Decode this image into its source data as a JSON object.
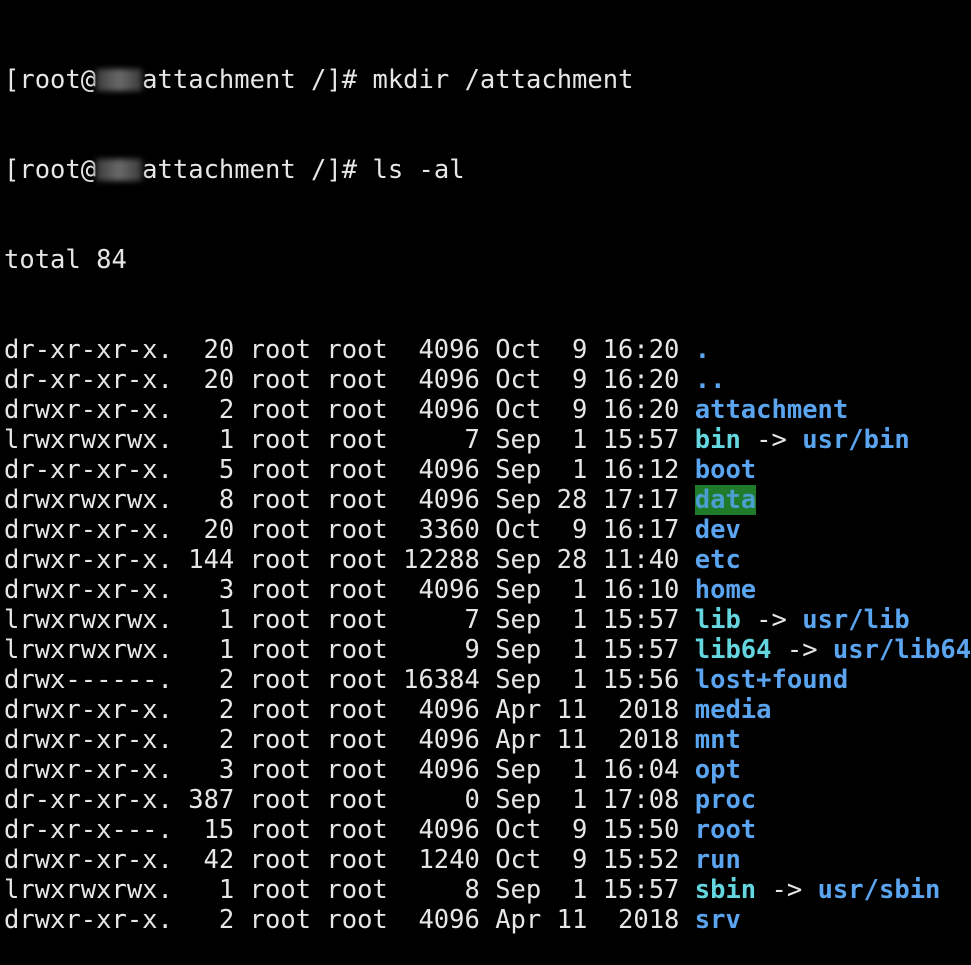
{
  "prompt_lines": [
    {
      "user": "[root@",
      "host_rest": "attachment /]# ",
      "command": "mkdir /attachment"
    },
    {
      "user": "[root@",
      "host_rest": "attachment /]# ",
      "command": "ls -al"
    }
  ],
  "total": "total 84",
  "colors": {
    "background": "#000000",
    "text": "#e6e6e6",
    "directory": "#5aa4f0",
    "symlink": "#63d6e0",
    "sticky_bg": "#1f7a2a"
  },
  "entries": [
    {
      "perms": "dr-xr-xr-x.",
      "links": "20",
      "owner": "root",
      "group": "root",
      "size": "4096",
      "month": "Oct",
      "day": "9",
      "time": "16:20",
      "name": ".",
      "type": "dir"
    },
    {
      "perms": "dr-xr-xr-x.",
      "links": "20",
      "owner": "root",
      "group": "root",
      "size": "4096",
      "month": "Oct",
      "day": "9",
      "time": "16:20",
      "name": "..",
      "type": "dir"
    },
    {
      "perms": "drwxr-xr-x.",
      "links": "2",
      "owner": "root",
      "group": "root",
      "size": "4096",
      "month": "Oct",
      "day": "9",
      "time": "16:20",
      "name": "attachment",
      "type": "dir"
    },
    {
      "perms": "lrwxrwxrwx.",
      "links": "1",
      "owner": "root",
      "group": "root",
      "size": "7",
      "month": "Sep",
      "day": "1",
      "time": "15:57",
      "name": "bin",
      "type": "link",
      "target": "usr/bin"
    },
    {
      "perms": "dr-xr-xr-x.",
      "links": "5",
      "owner": "root",
      "group": "root",
      "size": "4096",
      "month": "Sep",
      "day": "1",
      "time": "16:12",
      "name": "boot",
      "type": "dir"
    },
    {
      "perms": "drwxrwxrwx.",
      "links": "8",
      "owner": "root",
      "group": "root",
      "size": "4096",
      "month": "Sep",
      "day": "28",
      "time": "17:17",
      "name": "data",
      "type": "sticky"
    },
    {
      "perms": "drwxr-xr-x.",
      "links": "20",
      "owner": "root",
      "group": "root",
      "size": "3360",
      "month": "Oct",
      "day": "9",
      "time": "16:17",
      "name": "dev",
      "type": "dir"
    },
    {
      "perms": "drwxr-xr-x.",
      "links": "144",
      "owner": "root",
      "group": "root",
      "size": "12288",
      "month": "Sep",
      "day": "28",
      "time": "11:40",
      "name": "etc",
      "type": "dir"
    },
    {
      "perms": "drwxr-xr-x.",
      "links": "3",
      "owner": "root",
      "group": "root",
      "size": "4096",
      "month": "Sep",
      "day": "1",
      "time": "16:10",
      "name": "home",
      "type": "dir"
    },
    {
      "perms": "lrwxrwxrwx.",
      "links": "1",
      "owner": "root",
      "group": "root",
      "size": "7",
      "month": "Sep",
      "day": "1",
      "time": "15:57",
      "name": "lib",
      "type": "link",
      "target": "usr/lib"
    },
    {
      "perms": "lrwxrwxrwx.",
      "links": "1",
      "owner": "root",
      "group": "root",
      "size": "9",
      "month": "Sep",
      "day": "1",
      "time": "15:57",
      "name": "lib64",
      "type": "link",
      "target": "usr/lib64"
    },
    {
      "perms": "drwx------.",
      "links": "2",
      "owner": "root",
      "group": "root",
      "size": "16384",
      "month": "Sep",
      "day": "1",
      "time": "15:56",
      "name": "lost+found",
      "type": "dir"
    },
    {
      "perms": "drwxr-xr-x.",
      "links": "2",
      "owner": "root",
      "group": "root",
      "size": "4096",
      "month": "Apr",
      "day": "11",
      "time": " 2018",
      "name": "media",
      "type": "dir"
    },
    {
      "perms": "drwxr-xr-x.",
      "links": "2",
      "owner": "root",
      "group": "root",
      "size": "4096",
      "month": "Apr",
      "day": "11",
      "time": " 2018",
      "name": "mnt",
      "type": "dir"
    },
    {
      "perms": "drwxr-xr-x.",
      "links": "3",
      "owner": "root",
      "group": "root",
      "size": "4096",
      "month": "Sep",
      "day": "1",
      "time": "16:04",
      "name": "opt",
      "type": "dir"
    },
    {
      "perms": "dr-xr-xr-x.",
      "links": "387",
      "owner": "root",
      "group": "root",
      "size": "0",
      "month": "Sep",
      "day": "1",
      "time": "17:08",
      "name": "proc",
      "type": "dir"
    },
    {
      "perms": "dr-xr-x---.",
      "links": "15",
      "owner": "root",
      "group": "root",
      "size": "4096",
      "month": "Oct",
      "day": "9",
      "time": "15:50",
      "name": "root",
      "type": "dir"
    },
    {
      "perms": "drwxr-xr-x.",
      "links": "42",
      "owner": "root",
      "group": "root",
      "size": "1240",
      "month": "Oct",
      "day": "9",
      "time": "15:52",
      "name": "run",
      "type": "dir"
    },
    {
      "perms": "lrwxrwxrwx.",
      "links": "1",
      "owner": "root",
      "group": "root",
      "size": "8",
      "month": "Sep",
      "day": "1",
      "time": "15:57",
      "name": "sbin",
      "type": "link",
      "target": "usr/sbin"
    },
    {
      "perms": "drwxr-xr-x.",
      "links": "2",
      "owner": "root",
      "group": "root",
      "size": "4096",
      "month": "Apr",
      "day": "11",
      "time": " 2018",
      "name": "srv",
      "type": "dir"
    }
  ],
  "arrow": " -> "
}
